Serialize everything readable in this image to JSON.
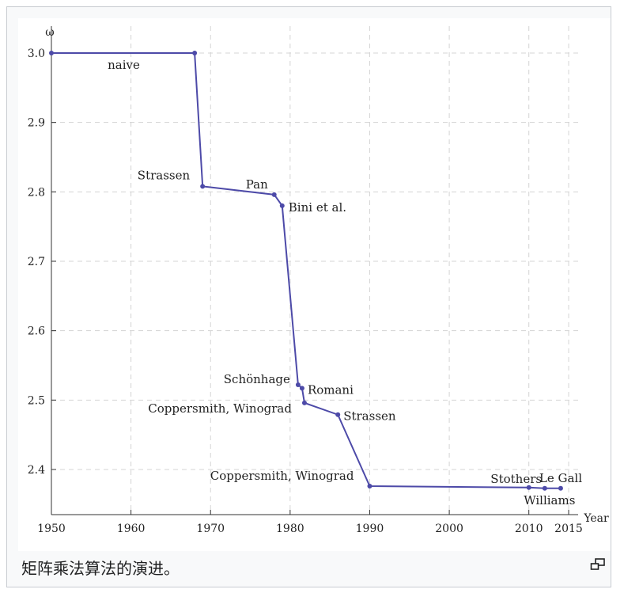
{
  "caption": "矩阵乘法算法的演进。",
  "enlarge_icon": "magnify-clip-icon",
  "chart_data": {
    "type": "line",
    "title": "",
    "xlabel": "Year",
    "ylabel": "ω",
    "xlim": [
      1950,
      2016
    ],
    "ylim": [
      2.32,
      3.03
    ],
    "xticks": [
      1950,
      1960,
      1970,
      1980,
      1990,
      2000,
      2010,
      2015
    ],
    "yticks": [
      2.4,
      2.5,
      2.6,
      2.7,
      2.8,
      2.9,
      3.0
    ],
    "ytick_labels": [
      "2.4",
      "2.5",
      "2.6",
      "2.7",
      "2.8",
      "2.9",
      "3.0"
    ],
    "grid": true,
    "line_color": "#4d4aa8",
    "points": [
      {
        "x": 1950,
        "y": 3.0,
        "label": ""
      },
      {
        "x": 1968,
        "y": 3.0,
        "label": "naive"
      },
      {
        "x": 1969,
        "y": 2.808,
        "label": "Strassen"
      },
      {
        "x": 1978,
        "y": 2.796,
        "label": "Pan"
      },
      {
        "x": 1979,
        "y": 2.78,
        "label": "Bini et al."
      },
      {
        "x": 1981,
        "y": 2.522,
        "label": "Schönhage"
      },
      {
        "x": 1981.5,
        "y": 2.517,
        "label": "Romani"
      },
      {
        "x": 1981.8,
        "y": 2.496,
        "label": "Coppersmith, Winograd"
      },
      {
        "x": 1986,
        "y": 2.479,
        "label": "Strassen"
      },
      {
        "x": 1990,
        "y": 2.376,
        "label": "Coppersmith, Winograd"
      },
      {
        "x": 2010,
        "y": 2.374,
        "label": "Stothers"
      },
      {
        "x": 2012,
        "y": 2.3729,
        "label": "Williams"
      },
      {
        "x": 2014,
        "y": 2.3729,
        "label": "Le Gall"
      }
    ]
  }
}
